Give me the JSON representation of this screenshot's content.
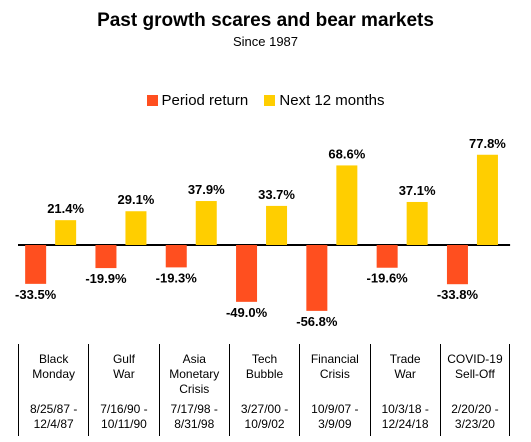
{
  "chart_data": {
    "type": "bar",
    "title": "Past growth scares and bear markets",
    "subtitle": "Since 1987",
    "legend_position": "top-center",
    "grid": false,
    "ylim": [
      -60,
      80
    ],
    "categories": [
      {
        "name": "Black\nMonday",
        "dates": "8/25/87 -\n12/4/87"
      },
      {
        "name": "Gulf\nWar",
        "dates": "7/16/90 -\n10/11/90"
      },
      {
        "name": "Asia\nMonetary\nCrisis",
        "dates": "7/17/98 -\n8/31/98"
      },
      {
        "name": "Tech\nBubble",
        "dates": "3/27/00 -\n10/9/02"
      },
      {
        "name": "Financial\nCrisis",
        "dates": "10/9/07 -\n3/9/09"
      },
      {
        "name": "Trade\nWar",
        "dates": "10/3/18 -\n12/24/18"
      },
      {
        "name": "COVID-19\nSell-Off",
        "dates": "2/20/20 -\n3/23/20"
      }
    ],
    "series": [
      {
        "name": "Period return",
        "color": "#FF4F1F",
        "values": [
          -33.5,
          -19.9,
          -19.3,
          -49.0,
          -56.8,
          -19.6,
          -33.8
        ],
        "labels": [
          "-33.5%",
          "-19.9%",
          "-19.3%",
          "-49.0%",
          "-56.8%",
          "-19.6%",
          "-33.8%"
        ]
      },
      {
        "name": "Next 12 months",
        "color": "#FFCE00",
        "values": [
          21.4,
          29.1,
          37.9,
          33.7,
          68.6,
          37.1,
          77.8
        ],
        "labels": [
          "21.4%",
          "29.1%",
          "37.9%",
          "33.7%",
          "68.6%",
          "37.1%",
          "77.8%"
        ]
      }
    ]
  }
}
